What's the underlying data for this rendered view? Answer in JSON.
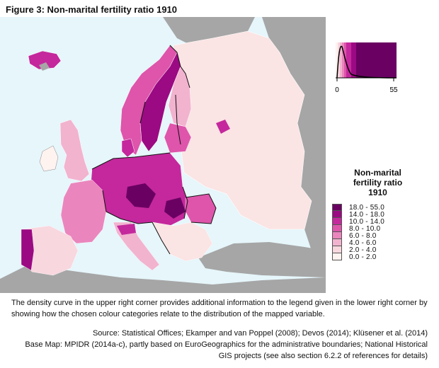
{
  "figure_title": "Figure 3: Non-marital fertility ratio 1910",
  "legend": {
    "title_line1": "Non-marital",
    "title_line2": "fertility ratio",
    "title_line3": "1910",
    "classes": [
      {
        "label": "18.0 - 55.0",
        "color": "#6a0062"
      },
      {
        "label": "14.0 - 18.0",
        "color": "#9b0a82"
      },
      {
        "label": "10.0 - 14.0",
        "color": "#c4289c"
      },
      {
        "label": "8.0 - 10.0",
        "color": "#de55ab"
      },
      {
        "label": "6.0 - 8.0",
        "color": "#ea86bd"
      },
      {
        "label": "4.0 - 6.0",
        "color": "#f2b3cf"
      },
      {
        "label": "2.0 - 4.0",
        "color": "#f8d7df"
      },
      {
        "label": "0.0 - 2.0",
        "color": "#fff3f0"
      }
    ]
  },
  "inset": {
    "x_min_label": "0",
    "x_max_label": "55"
  },
  "caption": "The density curve in the upper right corner provides additional information to the legend given in the lower right corner by showing how the chosen colour categories relate to the distribution of the mapped variable.",
  "source_line1": "Source: Statistical Offices; Ekamper and van Poppel (2008); Devos (2014); Klüsener et al. (2014)",
  "source_line2": "Base Map: MPIDR (2014a-c), partly based on EuroGeographics for the administrative boundaries; National Historical GIS projects (see also section 6.2.2 of references for details)",
  "colors": {
    "sea": "#e6f6fb",
    "non_europe_land": "#a6a6a6",
    "border": "#111111"
  }
}
